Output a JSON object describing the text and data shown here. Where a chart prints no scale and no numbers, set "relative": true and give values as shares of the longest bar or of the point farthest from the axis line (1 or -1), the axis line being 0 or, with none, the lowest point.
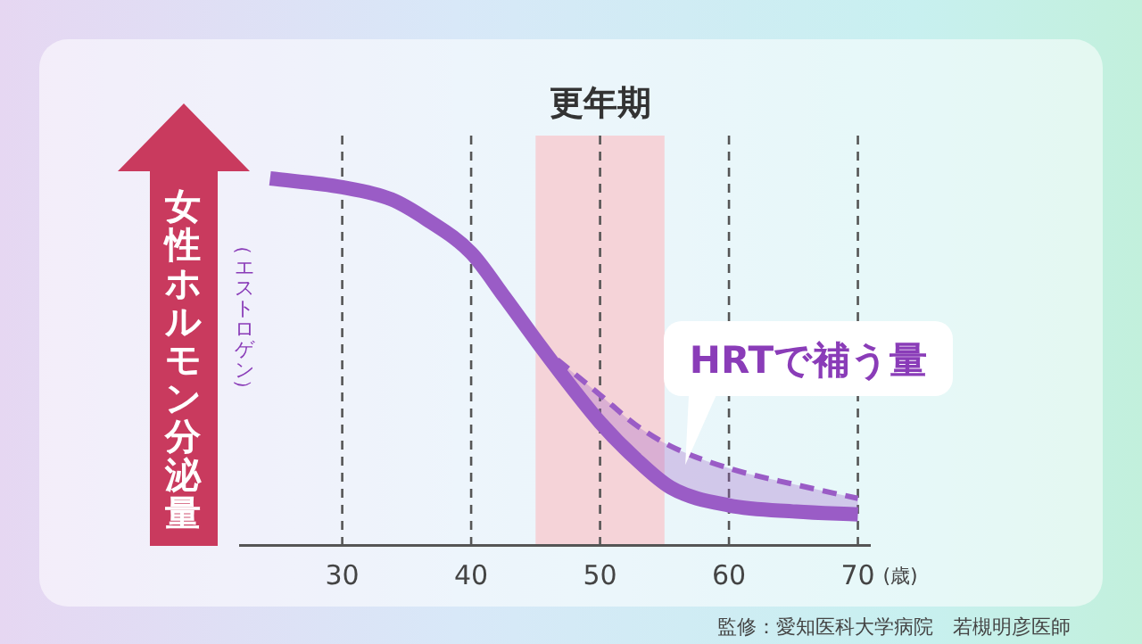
{
  "chart_data": {
    "type": "line",
    "relative": true,
    "ylabel": "女性ホルモン分泌量",
    "xlabel": "(歳)",
    "xlim": [
      22,
      71
    ],
    "xticks": [
      30,
      40,
      50,
      60,
      70
    ],
    "grid": "x",
    "bands": [
      {
        "axis": "x",
        "from": 45,
        "to": 55,
        "label": "更年期",
        "color": "#f5d3d8"
      }
    ],
    "series": [
      {
        "color": "#9a5cc6",
        "line_style": "solid",
        "x": [
          24.4,
          30,
          33.8,
          36.6,
          40,
          42.6,
          45.3,
          48.1,
          50,
          52.7,
          55.5,
          60,
          65.2,
          70
        ],
        "values": [
          1.0,
          0.976,
          0.943,
          0.887,
          0.797,
          0.676,
          0.546,
          0.417,
          0.335,
          0.238,
          0.157,
          0.109,
          0.092,
          0.084
        ]
      },
      {
        "color": "#9a5cc6",
        "line_style": "dashed",
        "x": [
          45.3,
          50,
          52.7,
          55.5,
          60,
          65.2,
          70
        ],
        "values": [
          0.546,
          0.41,
          0.33,
          0.27,
          0.21,
          0.165,
          0.128
        ],
        "lower": [
          0.546,
          0.335,
          0.238,
          0.157,
          0.109,
          0.092,
          0.084
        ],
        "upper": [
          0.546,
          0.41,
          0.33,
          0.27,
          0.21,
          0.165,
          0.128
        ]
      }
    ],
    "annotations": [
      "（エストロゲン）",
      {
        "text": "HRTで補う量",
        "x": 58,
        "y": 0.2
      },
      "監修：愛知医科大学病院　若槻明彦医師"
    ]
  }
}
